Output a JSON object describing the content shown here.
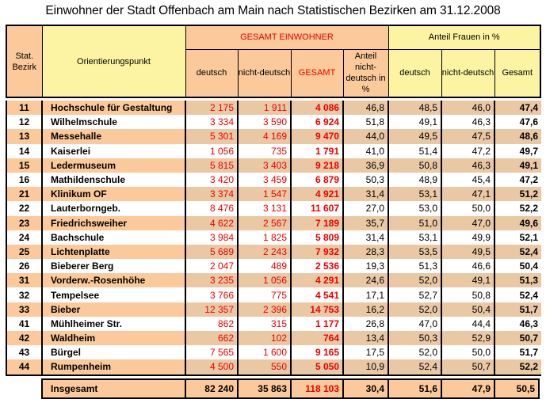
{
  "title": "Einwohner der Stadt Offenbach am Main  nach Statistischen Bezirken am 31.12.2008",
  "header": {
    "bezirk": "Stat. Bezirk",
    "punkt": "Orientierungspunkt",
    "group_einwohner": "GESAMT EINWOHNER",
    "group_frauen": "Anteil Frauen in %",
    "deutsch": "deutsch",
    "nichtdeutsch": "nicht-deutsch",
    "gesamt_upper": "GESAMT",
    "anteil_nd": "Anteil nicht-deutsch in %",
    "f_deutsch": "deutsch",
    "f_nichtdeutsch": "nicht-deutsch",
    "f_gesamt": "Gesamt"
  },
  "rows": [
    {
      "bezirk": "11",
      "name": "Hochschule für Gestaltung",
      "deutsch": "2 175",
      "nichtdeutsch": "1 911",
      "gesamt": "4 086",
      "anteil_nd": "46,8",
      "f_deutsch": "48,5",
      "f_nichtdeutsch": "46,0",
      "f_gesamt": "47,4"
    },
    {
      "bezirk": "12",
      "name": "Wilhelmschule",
      "deutsch": "3 334",
      "nichtdeutsch": "3 590",
      "gesamt": "6 924",
      "anteil_nd": "51,8",
      "f_deutsch": "49,1",
      "f_nichtdeutsch": "46,3",
      "f_gesamt": "47,6"
    },
    {
      "bezirk": "13",
      "name": "Messehalle",
      "deutsch": "5 301",
      "nichtdeutsch": "4 169",
      "gesamt": "9 470",
      "anteil_nd": "44,0",
      "f_deutsch": "49,5",
      "f_nichtdeutsch": "47,5",
      "f_gesamt": "48,6"
    },
    {
      "bezirk": "14",
      "name": "Kaiserlei",
      "deutsch": "1 056",
      "nichtdeutsch": "735",
      "gesamt": "1 791",
      "anteil_nd": "41,0",
      "f_deutsch": "51,4",
      "f_nichtdeutsch": "47,2",
      "f_gesamt": "49,7"
    },
    {
      "bezirk": "15",
      "name": "Ledermuseum",
      "deutsch": "5 815",
      "nichtdeutsch": "3 403",
      "gesamt": "9 218",
      "anteil_nd": "36,9",
      "f_deutsch": "50,8",
      "f_nichtdeutsch": "46,3",
      "f_gesamt": "49,1"
    },
    {
      "bezirk": "16",
      "name": "Mathildenschule",
      "deutsch": "3 420",
      "nichtdeutsch": "3 459",
      "gesamt": "6 879",
      "anteil_nd": "50,3",
      "f_deutsch": "48,9",
      "f_nichtdeutsch": "45,4",
      "f_gesamt": "47,2"
    },
    {
      "bezirk": "21",
      "name": "Klinikum OF",
      "deutsch": "3 374",
      "nichtdeutsch": "1 547",
      "gesamt": "4 921",
      "anteil_nd": "31,4",
      "f_deutsch": "53,1",
      "f_nichtdeutsch": "47,1",
      "f_gesamt": "51,2"
    },
    {
      "bezirk": "22",
      "name": "Lauterborngeb.",
      "deutsch": "8 476",
      "nichtdeutsch": "3 131",
      "gesamt": "11 607",
      "anteil_nd": "27,0",
      "f_deutsch": "53,0",
      "f_nichtdeutsch": "50,0",
      "f_gesamt": "52,2"
    },
    {
      "bezirk": "23",
      "name": "Friedrichsweiher",
      "deutsch": "4 622",
      "nichtdeutsch": "2 567",
      "gesamt": "7 189",
      "anteil_nd": "35,7",
      "f_deutsch": "51,0",
      "f_nichtdeutsch": "47,0",
      "f_gesamt": "49,6"
    },
    {
      "bezirk": "24",
      "name": "Bachschule",
      "deutsch": "3 984",
      "nichtdeutsch": "1 825",
      "gesamt": "5 809",
      "anteil_nd": "31,4",
      "f_deutsch": "53,1",
      "f_nichtdeutsch": "49,9",
      "f_gesamt": "52,1"
    },
    {
      "bezirk": "25",
      "name": "Lichtenplatte",
      "deutsch": "5 689",
      "nichtdeutsch": "2 243",
      "gesamt": "7 932",
      "anteil_nd": "28,3",
      "f_deutsch": "53,5",
      "f_nichtdeutsch": "49,5",
      "f_gesamt": "52,4"
    },
    {
      "bezirk": "26",
      "name": "Bieberer Berg",
      "deutsch": "2 047",
      "nichtdeutsch": "489",
      "gesamt": "2 536",
      "anteil_nd": "19,3",
      "f_deutsch": "51,3",
      "f_nichtdeutsch": "46,6",
      "f_gesamt": "50,4"
    },
    {
      "bezirk": "31",
      "name": "Vorderw.-Rosenhöhe",
      "deutsch": "3 235",
      "nichtdeutsch": "1 056",
      "gesamt": "4 291",
      "anteil_nd": "24,6",
      "f_deutsch": "52,0",
      "f_nichtdeutsch": "49,1",
      "f_gesamt": "51,3"
    },
    {
      "bezirk": "32",
      "name": "Tempelsee",
      "deutsch": "3 766",
      "nichtdeutsch": "775",
      "gesamt": "4 541",
      "anteil_nd": "17,1",
      "f_deutsch": "52,7",
      "f_nichtdeutsch": "50,8",
      "f_gesamt": "52,4"
    },
    {
      "bezirk": "33",
      "name": "Bieber",
      "deutsch": "12 357",
      "nichtdeutsch": "2 396",
      "gesamt": "14 753",
      "anteil_nd": "16,2",
      "f_deutsch": "52,0",
      "f_nichtdeutsch": "50,4",
      "f_gesamt": "51,7"
    },
    {
      "bezirk": "41",
      "name": "Mühlheimer Str.",
      "deutsch": "862",
      "nichtdeutsch": "315",
      "gesamt": "1 177",
      "anteil_nd": "26,8",
      "f_deutsch": "47,0",
      "f_nichtdeutsch": "44,4",
      "f_gesamt": "46,3"
    },
    {
      "bezirk": "42",
      "name": "Waldheim",
      "deutsch": "662",
      "nichtdeutsch": "102",
      "gesamt": "764",
      "anteil_nd": "13,4",
      "f_deutsch": "50,3",
      "f_nichtdeutsch": "52,9",
      "f_gesamt": "50,7"
    },
    {
      "bezirk": "43",
      "name": "Bürgel",
      "deutsch": "7 565",
      "nichtdeutsch": "1 600",
      "gesamt": "9 165",
      "anteil_nd": "17,5",
      "f_deutsch": "52,0",
      "f_nichtdeutsch": "50,0",
      "f_gesamt": "51,7"
    },
    {
      "bezirk": "44",
      "name": "Rumpenheim",
      "deutsch": "4 500",
      "nichtdeutsch": "550",
      "gesamt": "5 050",
      "anteil_nd": "10,9",
      "f_deutsch": "52,4",
      "f_nichtdeutsch": "50,7",
      "f_gesamt": "52,2"
    }
  ],
  "total": {
    "name": "Insgesamt",
    "deutsch": "82 240",
    "nichtdeutsch": "35 863",
    "gesamt": "118 103",
    "anteil_nd": "30,4",
    "f_deutsch": "51,6",
    "f_nichtdeutsch": "47,9",
    "f_gesamt": "50,5"
  },
  "colors": {
    "peach": "#fcc99a",
    "tan": "#ebc8a4",
    "yellow": "#fcf4a3",
    "red": "#ee0000"
  }
}
